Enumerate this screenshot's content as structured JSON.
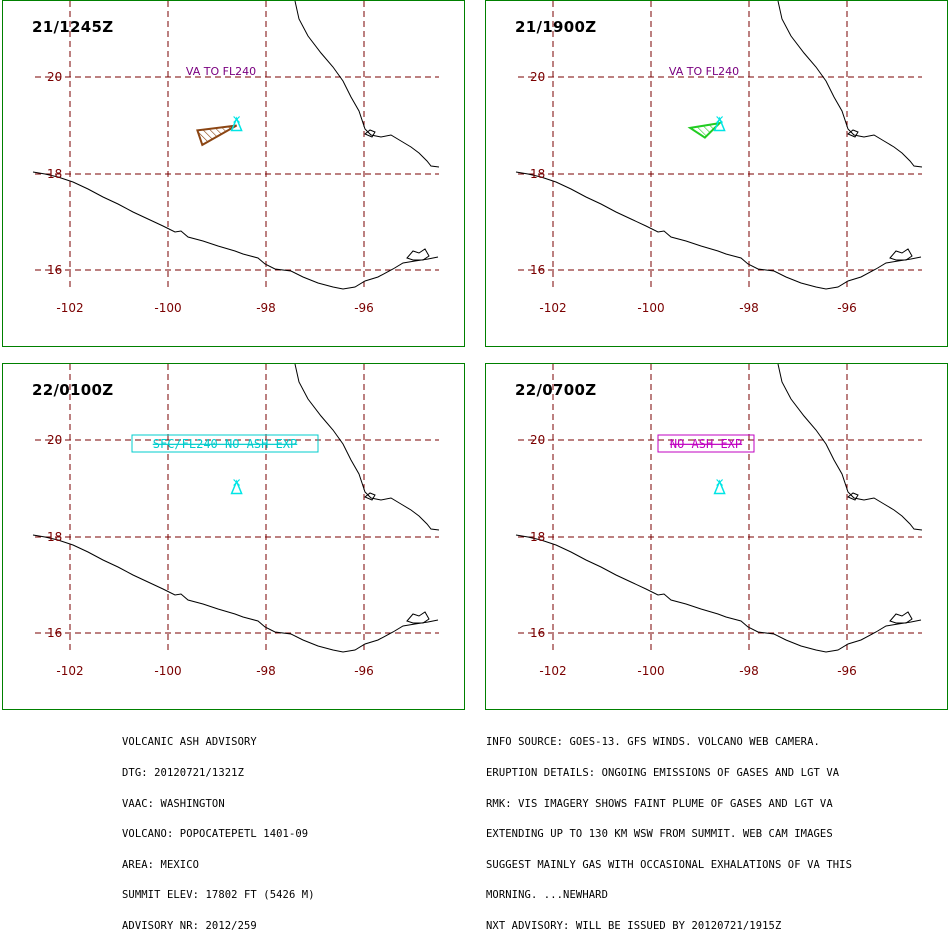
{
  "panels": [
    {
      "title": "21/1245Z",
      "annotation": {
        "text": "VA TO FL240",
        "style": "plain"
      },
      "ash": {
        "present": true,
        "color": "#8b4513",
        "points": [
          [
            -99.4,
            18.9
          ],
          [
            -98.6,
            19.0
          ],
          [
            -99.3,
            18.6
          ]
        ]
      }
    },
    {
      "title": "21/1900Z",
      "annotation": {
        "text": "VA TO FL240",
        "style": "plain"
      },
      "ash": {
        "present": true,
        "color": "#22cc22",
        "points": [
          [
            -99.2,
            18.95
          ],
          [
            -98.6,
            19.05
          ],
          [
            -98.9,
            18.75
          ]
        ]
      }
    },
    {
      "title": "22/0100Z",
      "annotation": {
        "text": "SFC/FL240 NO ASH EXP",
        "style": "boxed"
      },
      "ash": {
        "present": false
      }
    },
    {
      "title": "22/0700Z",
      "annotation": {
        "text": "NO ASH EXP",
        "style": "boxed"
      },
      "ash": {
        "present": false
      }
    }
  ],
  "map": {
    "lon_ticks": [
      "-102",
      "-100",
      "-98",
      "-96"
    ],
    "lat_ticks": [
      "20",
      "18",
      "16"
    ],
    "volcano": {
      "lon": -98.6,
      "lat": 19.0
    },
    "colors": {
      "grid": "#7a0000",
      "coast": "#000000",
      "volcano": "#00e5e5",
      "plain_annotation": "#7a0080",
      "boxed_annotation_1": "#00cccc",
      "boxed_annotation_2": "#c000c0",
      "frame": "#008000"
    }
  },
  "advisory_left": [
    "VOLCANIC ASH ADVISORY",
    "DTG: 20120721/1321Z",
    "VAAC: WASHINGTON",
    "VOLCANO: POPOCATEPETL 1401-09",
    "AREA: MEXICO",
    "SUMMIT ELEV: 17802 FT (5426 M)",
    "ADVISORY NR: 2012/259"
  ],
  "advisory_right": [
    "INFO SOURCE: GOES-13. GFS WINDS. VOLCANO WEB CAMERA.",
    "ERUPTION DETAILS: ONGOING EMISSIONS OF GASES AND LGT VA",
    "RMK: VIS IMAGERY SHOWS FAINT PLUME OF GASES AND LGT VA",
    "EXTENDING UP TO 130 KM WSW FROM SUMMIT. WEB CAM IMAGES",
    "SUGGEST MAINLY GAS WITH OCCASIONAL EXHALATIONS OF VA THIS",
    "MORNING. ...NEWHARD",
    "NXT ADVISORY: WILL BE ISSUED BY 20120721/1915Z"
  ]
}
